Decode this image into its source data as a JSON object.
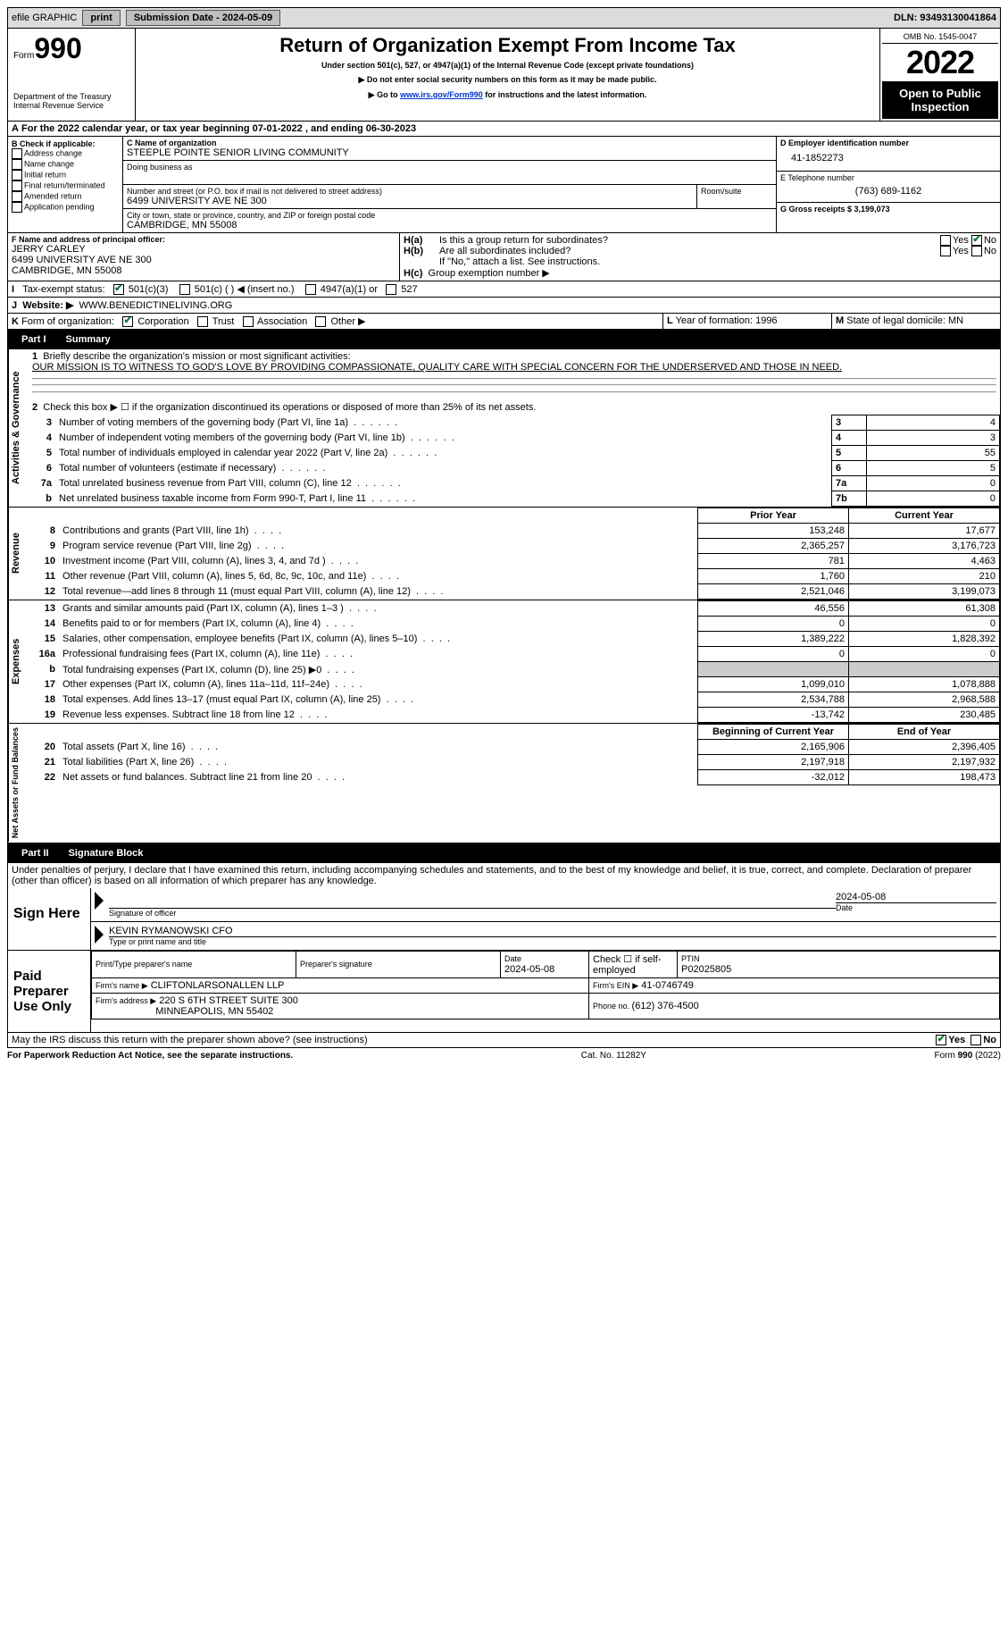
{
  "topbar": {
    "efile": "efile GRAPHIC",
    "print": "print",
    "subdate_lbl": "Submission Date - ",
    "subdate": "2024-05-09",
    "dln_lbl": "DLN: ",
    "dln": "93493130041864"
  },
  "header": {
    "form_word": "Form",
    "form_num": "990",
    "title": "Return of Organization Exempt From Income Tax",
    "sub1": "Under section 501(c), 527, or 4947(a)(1) of the Internal Revenue Code (except private foundations)",
    "sub2": "▶ Do not enter social security numbers on this form as it may be made public.",
    "sub3_pre": "▶ Go to ",
    "sub3_link": "www.irs.gov/Form990",
    "sub3_post": " for instructions and the latest information.",
    "dept": "Department of the Treasury",
    "irs": "Internal Revenue Service",
    "omb": "OMB No. 1545-0047",
    "year": "2022",
    "inspect": "Open to Public Inspection"
  },
  "A": {
    "text": "For the 2022 calendar year, or tax year beginning ",
    "begin": "07-01-2022",
    "mid": " , and ending ",
    "end": "06-30-2023"
  },
  "B": {
    "label": "B Check if applicable:",
    "opts": [
      "Address change",
      "Name change",
      "Initial return",
      "Final return/terminated",
      "Amended return",
      "Application pending"
    ]
  },
  "C": {
    "name_lbl": "C Name of organization",
    "name": "STEEPLE POINTE SENIOR LIVING COMMUNITY",
    "dba_lbl": "Doing business as",
    "street_lbl": "Number and street (or P.O. box if mail is not delivered to street address)",
    "street": "6499 UNIVERSITY AVE NE 300",
    "room_lbl": "Room/suite",
    "city_lbl": "City or town, state or province, country, and ZIP or foreign postal code",
    "city": "CAMBRIDGE, MN  55008"
  },
  "D": {
    "lbl": "D Employer identification number",
    "val": "41-1852273"
  },
  "E": {
    "lbl": "E Telephone number",
    "val": "(763) 689-1162"
  },
  "G": {
    "lbl": "G Gross receipts $ ",
    "val": "3,199,073"
  },
  "F": {
    "lbl": "F  Name and address of principal officer:",
    "name": "JERRY CARLEY",
    "addr1": "6499 UNIVERSITY AVE NE 300",
    "addr2": "CAMBRIDGE, MN  55008"
  },
  "H": {
    "a1": "H(a)",
    "a1_txt": "Is this a group return for subordinates?",
    "b": "H(b)",
    "b_txt": "Are all subordinates included?",
    "b_note": "If \"No,\" attach a list. See instructions.",
    "c": "H(c)",
    "c_txt": "Group exemption number ▶",
    "yes": "Yes",
    "no": "No"
  },
  "I": {
    "lbl": "I",
    "txt": "Tax-exempt status:",
    "o1": "501(c)(3)",
    "o2": "501(c) (  ) ◀ (insert no.)",
    "o3": "4947(a)(1) or",
    "o4": "527"
  },
  "J": {
    "lbl": "J",
    "txt": "Website: ▶",
    "val": "WWW.BENEDICTINELIVING.ORG"
  },
  "K": {
    "lbl": "K",
    "txt": "Form of organization:",
    "o1": "Corporation",
    "o2": "Trust",
    "o3": "Association",
    "o4": "Other ▶"
  },
  "L": {
    "lbl": "L",
    "txt": "Year of formation: ",
    "val": "1996"
  },
  "M": {
    "lbl": "M",
    "txt": "State of legal domicile: ",
    "val": "MN"
  },
  "part1": {
    "label": "Part I",
    "title": "Summary"
  },
  "p1": {
    "l1": "Briefly describe the organization's mission or most significant activities:",
    "mission": "OUR MISSION IS TO WITNESS TO GOD'S LOVE BY PROVIDING COMPASSIONATE, QUALITY CARE WITH SPECIAL CONCERN FOR THE UNDERSERVED AND THOSE IN NEED.",
    "l2": "Check this box ▶ ☐ if the organization discontinued its operations or disposed of more than 25% of its net assets.",
    "rows_ag": [
      {
        "n": "3",
        "t": "Number of voting members of the governing body (Part VI, line 1a)",
        "box": "3",
        "v": "4"
      },
      {
        "n": "4",
        "t": "Number of independent voting members of the governing body (Part VI, line 1b)",
        "box": "4",
        "v": "3"
      },
      {
        "n": "5",
        "t": "Total number of individuals employed in calendar year 2022 (Part V, line 2a)",
        "box": "5",
        "v": "55"
      },
      {
        "n": "6",
        "t": "Total number of volunteers (estimate if necessary)",
        "box": "6",
        "v": "5"
      },
      {
        "n": "7a",
        "t": "Total unrelated business revenue from Part VIII, column (C), line 12",
        "box": "7a",
        "v": "0"
      },
      {
        "n": "b",
        "t": "Net unrelated business taxable income from Form 990-T, Part I, line 11",
        "box": "7b",
        "v": "0"
      }
    ],
    "pyr": "Prior Year",
    "cyr": "Current Year",
    "rev": [
      {
        "n": "8",
        "t": "Contributions and grants (Part VIII, line 1h)",
        "p": "153,248",
        "c": "17,677"
      },
      {
        "n": "9",
        "t": "Program service revenue (Part VIII, line 2g)",
        "p": "2,365,257",
        "c": "3,176,723"
      },
      {
        "n": "10",
        "t": "Investment income (Part VIII, column (A), lines 3, 4, and 7d )",
        "p": "781",
        "c": "4,463"
      },
      {
        "n": "11",
        "t": "Other revenue (Part VIII, column (A), lines 5, 6d, 8c, 9c, 10c, and 11e)",
        "p": "1,760",
        "c": "210"
      },
      {
        "n": "12",
        "t": "Total revenue—add lines 8 through 11 (must equal Part VIII, column (A), line 12)",
        "p": "2,521,046",
        "c": "3,199,073"
      }
    ],
    "exp": [
      {
        "n": "13",
        "t": "Grants and similar amounts paid (Part IX, column (A), lines 1–3 )",
        "p": "46,556",
        "c": "61,308"
      },
      {
        "n": "14",
        "t": "Benefits paid to or for members (Part IX, column (A), line 4)",
        "p": "0",
        "c": "0"
      },
      {
        "n": "15",
        "t": "Salaries, other compensation, employee benefits (Part IX, column (A), lines 5–10)",
        "p": "1,389,222",
        "c": "1,828,392"
      },
      {
        "n": "16a",
        "t": "Professional fundraising fees (Part IX, column (A), line 11e)",
        "p": "0",
        "c": "0"
      },
      {
        "n": "b",
        "t": "Total fundraising expenses (Part IX, column (D), line 25) ▶0",
        "p": "",
        "c": "",
        "shaded": true
      },
      {
        "n": "17",
        "t": "Other expenses (Part IX, column (A), lines 11a–11d, 11f–24e)",
        "p": "1,099,010",
        "c": "1,078,888"
      },
      {
        "n": "18",
        "t": "Total expenses. Add lines 13–17 (must equal Part IX, column (A), line 25)",
        "p": "2,534,788",
        "c": "2,968,588"
      },
      {
        "n": "19",
        "t": "Revenue less expenses. Subtract line 18 from line 12",
        "p": "-13,742",
        "c": "230,485"
      }
    ],
    "bcyr": "Beginning of Current Year",
    "eoy": "End of Year",
    "na": [
      {
        "n": "20",
        "t": "Total assets (Part X, line 16)",
        "p": "2,165,906",
        "c": "2,396,405"
      },
      {
        "n": "21",
        "t": "Total liabilities (Part X, line 26)",
        "p": "2,197,918",
        "c": "2,197,932"
      },
      {
        "n": "22",
        "t": "Net assets or fund balances. Subtract line 21 from line 20",
        "p": "-32,012",
        "c": "198,473"
      }
    ]
  },
  "part2": {
    "label": "Part II",
    "title": "Signature Block"
  },
  "perjury": "Under penalties of perjury, I declare that I have examined this return, including accompanying schedules and statements, and to the best of my knowledge and belief, it is true, correct, and complete. Declaration of preparer (other than officer) is based on all information of which preparer has any knowledge.",
  "sign": {
    "here": "Sign Here",
    "sig_lbl": "Signature of officer",
    "date": "2024-05-08",
    "date_lbl": "Date",
    "name": "KEVIN RYMANOWSKI CFO",
    "name_lbl": "Type or print name and title"
  },
  "paid": {
    "label": "Paid Preparer Use Only",
    "pt_name_lbl": "Print/Type preparer's name",
    "sig_lbl": "Preparer's signature",
    "date_lbl": "Date",
    "date": "2024-05-08",
    "self_lbl": "Check ☐ if self-employed",
    "ptin_lbl": "PTIN",
    "ptin": "P02025805",
    "firm_lbl": "Firm's name    ▶",
    "firm": "CLIFTONLARSONALLEN LLP",
    "ein_lbl": "Firm's EIN ▶",
    "ein": "41-0746749",
    "addr_lbl": "Firm's address ▶",
    "addr1": "220 S 6TH STREET SUITE 300",
    "addr2": "MINNEAPOLIS, MN  55402",
    "phone_lbl": "Phone no. ",
    "phone": "(612) 376-4500"
  },
  "discuss": "May the IRS discuss this return with the preparer shown above? (see instructions)",
  "footer": {
    "pra": "For Paperwork Reduction Act Notice, see the separate instructions.",
    "cat": "Cat. No. 11282Y",
    "form": "Form 990 (2022)"
  },
  "sides": {
    "ag": "Activities & Governance",
    "rev": "Revenue",
    "exp": "Expenses",
    "na": "Net Assets or Fund Balances"
  }
}
